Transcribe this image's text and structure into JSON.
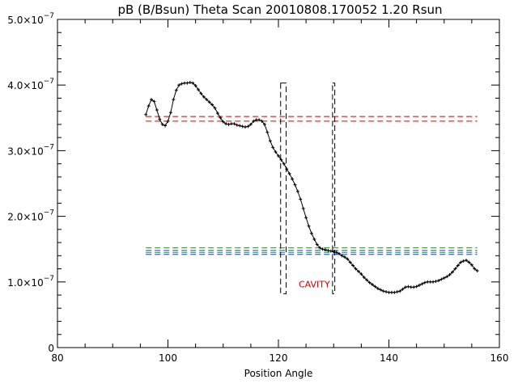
{
  "chart_data": {
    "type": "line",
    "title": "pB (B/Bsun) Theta Scan 20010808.170052 1.20 Rsun",
    "xlabel": "Position Angle",
    "ylabel": "",
    "xlim": [
      80,
      160
    ],
    "ylim": [
      0,
      5e-07
    ],
    "x_ticks": [
      80,
      100,
      120,
      140,
      160
    ],
    "x_tick_labels": [
      "80",
      "100",
      "120",
      "140",
      "160"
    ],
    "y_ticks": [
      0,
      1e-07,
      2e-07,
      3e-07,
      4e-07,
      5e-07
    ],
    "y_tick_labels": [
      {
        "mant": "0",
        "exp": ""
      },
      {
        "mant": "1.0×10",
        "exp": "−7"
      },
      {
        "mant": "2.0×10",
        "exp": "−7"
      },
      {
        "mant": "3.0×10",
        "exp": "−7"
      },
      {
        "mant": "4.0×10",
        "exp": "−7"
      },
      {
        "mant": "5.0×10",
        "exp": "−7"
      }
    ],
    "grid": false,
    "series": [
      {
        "color": "#000000",
        "marker": "plus",
        "x": [
          96,
          96.5,
          97,
          97.5,
          98,
          98.5,
          99,
          99.5,
          100,
          100.5,
          101,
          101.5,
          102,
          102.5,
          103,
          103.5,
          104,
          104.5,
          105,
          105.5,
          106,
          106.5,
          107,
          107.5,
          108,
          108.5,
          109,
          109.5,
          110,
          110.5,
          111,
          111.5,
          112,
          112.5,
          113,
          113.5,
          114,
          114.5,
          115,
          115.5,
          116,
          116.5,
          117,
          117.5,
          118,
          118.5,
          119,
          119.5,
          120,
          120.5,
          121,
          121.5,
          122,
          122.5,
          123,
          123.5,
          124,
          124.5,
          125,
          125.5,
          126,
          126.5,
          127,
          127.5,
          128,
          128.5,
          129,
          129.5,
          130,
          130.5,
          131,
          131.5,
          132,
          132.5,
          133,
          133.5,
          134,
          134.5,
          135,
          135.5,
          136,
          136.5,
          137,
          137.5,
          138,
          138.5,
          139,
          139.5,
          140,
          140.5,
          141,
          141.5,
          142,
          142.5,
          143,
          143.5,
          144,
          144.5,
          145,
          145.5,
          146,
          146.5,
          147,
          147.5,
          148,
          148.5,
          149,
          149.5,
          150,
          150.5,
          151,
          151.5,
          152,
          152.5,
          153,
          153.5,
          154,
          154.5,
          155,
          155.5,
          156
        ],
        "values": [
          3.55e-07,
          3.68e-07,
          3.78e-07,
          3.75e-07,
          3.62e-07,
          3.48e-07,
          3.4e-07,
          3.38e-07,
          3.45e-07,
          3.58e-07,
          3.78e-07,
          3.92e-07,
          4e-07,
          4.02e-07,
          4.03e-07,
          4.03e-07,
          4.04e-07,
          4.03e-07,
          3.99e-07,
          3.93e-07,
          3.87e-07,
          3.82e-07,
          3.78e-07,
          3.74e-07,
          3.7e-07,
          3.65e-07,
          3.57e-07,
          3.5e-07,
          3.44e-07,
          3.41e-07,
          3.4e-07,
          3.41e-07,
          3.41e-07,
          3.39e-07,
          3.38e-07,
          3.37e-07,
          3.36e-07,
          3.37e-07,
          3.4e-07,
          3.45e-07,
          3.47e-07,
          3.47e-07,
          3.45e-07,
          3.4e-07,
          3.28e-07,
          3.15e-07,
          3.05e-07,
          2.98e-07,
          2.92e-07,
          2.86e-07,
          2.8e-07,
          2.72e-07,
          2.65e-07,
          2.57e-07,
          2.48e-07,
          2.38e-07,
          2.26e-07,
          2.12e-07,
          1.98e-07,
          1.85e-07,
          1.74e-07,
          1.65e-07,
          1.57e-07,
          1.52e-07,
          1.5e-07,
          1.49e-07,
          1.48e-07,
          1.47e-07,
          1.46e-07,
          1.45e-07,
          1.43e-07,
          1.4e-07,
          1.38e-07,
          1.35e-07,
          1.3e-07,
          1.25e-07,
          1.2e-07,
          1.16e-07,
          1.12e-07,
          1.07e-07,
          1.03e-07,
          9.9e-08,
          9.6e-08,
          9.3e-08,
          9e-08,
          8.8e-08,
          8.6e-08,
          8.5e-08,
          8.4e-08,
          8.4e-08,
          8.4e-08,
          8.5e-08,
          8.6e-08,
          8.9e-08,
          9.2e-08,
          9.3e-08,
          9.2e-08,
          9.2e-08,
          9.3e-08,
          9.5e-08,
          9.7e-08,
          9.9e-08,
          1e-07,
          1e-07,
          1e-07,
          1.01e-07,
          1.02e-07,
          1.04e-07,
          1.06e-07,
          1.08e-07,
          1.11e-07,
          1.15e-07,
          1.2e-07,
          1.25e-07,
          1.3e-07,
          1.32e-07,
          1.33e-07,
          1.3e-07,
          1.26e-07,
          1.2e-07,
          1.17e-07
        ]
      }
    ],
    "reference_lines": [
      {
        "color": "#cc0000",
        "x": [
          96,
          156
        ],
        "y": 3.52e-07
      },
      {
        "color": "#cc0000",
        "x": [
          96,
          156
        ],
        "y": 3.45e-07
      },
      {
        "color": "#2a8a2a",
        "x": [
          96,
          156
        ],
        "y": 1.52e-07
      },
      {
        "color": "#2a8a2a",
        "x": [
          96,
          156
        ],
        "y": 1.45e-07
      },
      {
        "color": "#1f3fd1",
        "x": [
          96,
          156
        ],
        "y": 1.48e-07
      },
      {
        "color": "#1f3fd1",
        "x": [
          96,
          156
        ],
        "y": 1.42e-07
      }
    ],
    "boxes": [
      {
        "x0": 120.4,
        "x1": 121.4,
        "y0": 8.2e-08,
        "y1": 4.03e-07,
        "color": "#000000"
      },
      {
        "x0": 129.8,
        "x1": 130.2,
        "y0": 8.2e-08,
        "y1": 4.03e-07,
        "color": "#000000"
      }
    ],
    "annotations": [
      {
        "text": "CAVITY",
        "x": 126.5,
        "y": 9.2e-08,
        "color": "#cc0000"
      }
    ]
  }
}
